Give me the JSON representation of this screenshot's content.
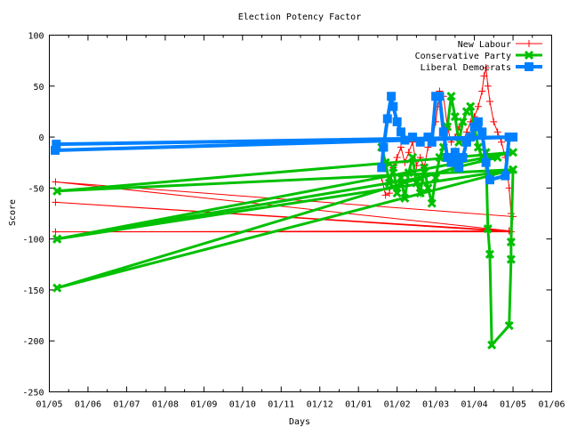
{
  "chart_data": {
    "type": "line",
    "title": "Election Potency Factor",
    "xlabel": "Days",
    "ylabel": "Score",
    "x_unit": "months since first 01/05 tick",
    "xlim": [
      0,
      13
    ],
    "ylim": [
      -250,
      100
    ],
    "xtick_labels": [
      "01/05",
      "01/06",
      "01/07",
      "01/08",
      "01/09",
      "01/10",
      "01/11",
      "01/12",
      "01/01",
      "01/02",
      "01/03",
      "01/04",
      "01/05",
      "01/06"
    ],
    "yticks": [
      100,
      50,
      0,
      -50,
      -100,
      -150,
      -200,
      -250
    ],
    "legend_position": "top-right",
    "grid": false,
    "series": [
      {
        "name": "New Labour",
        "color": "#ff0000",
        "marker": "plus",
        "points": [
          [
            8.6,
            -40
          ],
          [
            8.7,
            -57
          ],
          [
            8.8,
            -55
          ],
          [
            8.9,
            -30
          ],
          [
            9.0,
            -20
          ],
          [
            9.1,
            -10
          ],
          [
            9.2,
            -25
          ],
          [
            9.3,
            -15
          ],
          [
            9.4,
            -5
          ],
          [
            9.5,
            -28
          ],
          [
            9.6,
            -20
          ],
          [
            9.7,
            -30
          ],
          [
            9.8,
            -10
          ],
          [
            9.9,
            -5
          ],
          [
            10.0,
            15
          ],
          [
            10.05,
            30
          ],
          [
            10.1,
            45
          ],
          [
            10.2,
            40
          ],
          [
            10.3,
            10
          ],
          [
            10.4,
            -5
          ],
          [
            10.5,
            0
          ],
          [
            10.6,
            10
          ],
          [
            10.7,
            -5
          ],
          [
            10.8,
            5
          ],
          [
            10.9,
            15
          ],
          [
            11.0,
            20
          ],
          [
            11.1,
            30
          ],
          [
            11.2,
            45
          ],
          [
            11.25,
            60
          ],
          [
            11.3,
            68
          ],
          [
            11.35,
            50
          ],
          [
            11.4,
            35
          ],
          [
            11.5,
            15
          ],
          [
            11.6,
            5
          ],
          [
            11.7,
            -5
          ],
          [
            11.8,
            -20
          ],
          [
            11.9,
            -50
          ],
          [
            11.95,
            -75
          ],
          [
            12.0,
            -78
          ],
          [
            0.16,
            -44
          ],
          [
            11.9,
            -92
          ],
          [
            0.16,
            -64
          ],
          [
            11.95,
            -93
          ],
          [
            0.16,
            -93
          ],
          [
            11.9,
            -92
          ]
        ]
      },
      {
        "name": "Conservative Party",
        "color": "#00c000",
        "marker": "cross",
        "points": [
          [
            8.6,
            -10
          ],
          [
            8.7,
            -25
          ],
          [
            8.8,
            -45
          ],
          [
            8.9,
            -30
          ],
          [
            9.0,
            -55
          ],
          [
            9.1,
            -40
          ],
          [
            9.2,
            -60
          ],
          [
            9.3,
            -35
          ],
          [
            9.4,
            -20
          ],
          [
            9.5,
            -45
          ],
          [
            9.6,
            -55
          ],
          [
            9.7,
            -30
          ],
          [
            9.8,
            -50
          ],
          [
            9.9,
            -65
          ],
          [
            10.0,
            -40
          ],
          [
            10.1,
            -20
          ],
          [
            10.2,
            -10
          ],
          [
            10.3,
            10
          ],
          [
            10.4,
            40
          ],
          [
            10.5,
            20
          ],
          [
            10.6,
            -5
          ],
          [
            10.7,
            15
          ],
          [
            10.8,
            25
          ],
          [
            10.9,
            30
          ],
          [
            11.0,
            10
          ],
          [
            11.1,
            -10
          ],
          [
            11.2,
            -20
          ],
          [
            11.3,
            -15
          ],
          [
            11.35,
            -90
          ],
          [
            11.4,
            -115
          ],
          [
            11.45,
            -204
          ],
          [
            11.9,
            -185
          ],
          [
            11.95,
            -120
          ],
          [
            11.95,
            -103
          ],
          [
            12.0,
            -32
          ],
          [
            0.2,
            -53
          ],
          [
            12.0,
            -15
          ],
          [
            0.2,
            -100
          ],
          [
            9.6,
            -40
          ],
          [
            0.2,
            -100
          ],
          [
            12.0,
            -32
          ],
          [
            0.2,
            -148
          ],
          [
            10.5,
            -30
          ],
          [
            11.6,
            -20
          ]
        ]
      },
      {
        "name": "Liberal Democrats",
        "color": "#0080ff",
        "marker": "square",
        "points": [
          [
            8.6,
            -30
          ],
          [
            8.65,
            -10
          ],
          [
            8.75,
            18
          ],
          [
            8.85,
            40
          ],
          [
            8.9,
            30
          ],
          [
            9.0,
            15
          ],
          [
            9.1,
            5
          ],
          [
            9.2,
            -3
          ],
          [
            9.4,
            0
          ],
          [
            9.6,
            -5
          ],
          [
            9.8,
            0
          ],
          [
            9.9,
            -5
          ],
          [
            10.0,
            40
          ],
          [
            10.1,
            40
          ],
          [
            10.2,
            5
          ],
          [
            10.3,
            -20
          ],
          [
            10.4,
            -25
          ],
          [
            10.5,
            -15
          ],
          [
            10.6,
            -30
          ],
          [
            10.7,
            -20
          ],
          [
            10.8,
            -5
          ],
          [
            10.9,
            0
          ],
          [
            11.0,
            10
          ],
          [
            11.1,
            15
          ],
          [
            11.2,
            5
          ],
          [
            11.3,
            -25
          ],
          [
            11.4,
            -42
          ],
          [
            11.8,
            -38
          ],
          [
            11.9,
            0
          ],
          [
            12.0,
            0
          ],
          [
            0.15,
            -13
          ],
          [
            11.9,
            0
          ],
          [
            0.18,
            -7
          ],
          [
            12.0,
            0
          ]
        ]
      }
    ]
  }
}
